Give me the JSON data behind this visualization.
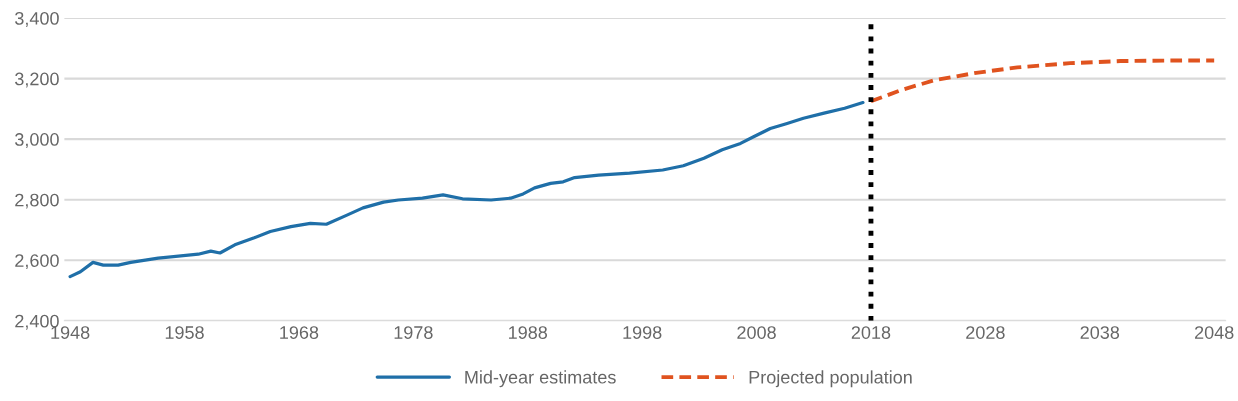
{
  "chart_data": {
    "type": "line",
    "xlim": [
      1947.5,
      2049
    ],
    "xticks": [
      1948,
      1958,
      1968,
      1978,
      1988,
      1998,
      2008,
      2018,
      2028,
      2038,
      2048
    ],
    "ylim": [
      2400,
      3400
    ],
    "yticks": [
      {
        "value": 2400,
        "label": "2,400"
      },
      {
        "value": 2600,
        "label": "2,600"
      },
      {
        "value": 2800,
        "label": "2,800"
      },
      {
        "value": 3000,
        "label": "3,000"
      },
      {
        "value": 3200,
        "label": "3,200"
      },
      {
        "value": 3400,
        "label": "3,400"
      }
    ],
    "grid": "y",
    "legend": "bottom",
    "ref_lines": [
      {
        "axis": "x",
        "value": 2018,
        "color": "#000000",
        "line_style": "dotted"
      }
    ],
    "series": [
      {
        "name": "Mid-year estimates",
        "color": "#1f6fa8",
        "line_style": "solid",
        "x": [
          1948.0,
          1948.9,
          1950.0,
          1950.9,
          1952.2,
          1953.3,
          1955.7,
          1959.2,
          1960.3,
          1961.1,
          1962.4,
          1964.1,
          1965.5,
          1967.3,
          1969.0,
          1970.4,
          1972.2,
          1973.6,
          1975.4,
          1976.7,
          1978.8,
          1980.6,
          1982.3,
          1984.8,
          1986.5,
          1987.6,
          1988.6,
          1990.0,
          1991.1,
          1992.1,
          1994.2,
          1996.9,
          1999.8,
          2001.6,
          2003.4,
          2005.0,
          2006.6,
          2007.7,
          2009.2,
          2010.6,
          2012.1,
          2013.9,
          2015.7,
          2017.3
        ],
        "values": [
          2546,
          2562,
          2593,
          2584,
          2584,
          2593,
          2607,
          2620,
          2630,
          2624,
          2651,
          2674,
          2695,
          2711,
          2722,
          2719,
          2749,
          2773,
          2792,
          2799,
          2805,
          2816,
          2803,
          2799,
          2805,
          2819,
          2839,
          2854,
          2859,
          2873,
          2881,
          2888,
          2898,
          2912,
          2937,
          2965,
          2986,
          3007,
          3035,
          3051,
          3069,
          3086,
          3102,
          3121
        ]
      },
      {
        "name": "Projected population",
        "color": "#e0531f",
        "line_style": "dashed",
        "x": [
          2018.0,
          2020.7,
          2023.6,
          2027.2,
          2030.8,
          2035.4,
          2039.8,
          2045.2,
          2048.0
        ],
        "values": [
          3125,
          3163,
          3195,
          3219,
          3237,
          3251,
          3258,
          3260,
          3260
        ]
      }
    ]
  }
}
